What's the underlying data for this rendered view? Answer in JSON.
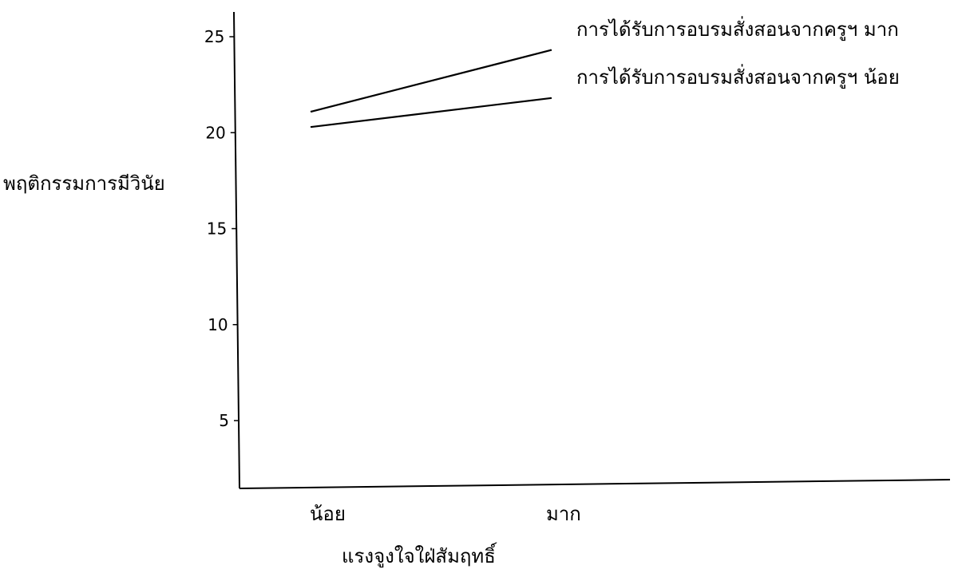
{
  "chart_data": {
    "type": "line",
    "categories": [
      "น้อย",
      "มาก"
    ],
    "series": [
      {
        "name": "การได้รับการอบรมสั่งสอนจากครูฯ มาก",
        "values": [
          21.1,
          24.3
        ]
      },
      {
        "name": "การได้รับการอบรมสั่งสอนจากครูฯ น้อย",
        "values": [
          20.3,
          21.8
        ]
      }
    ],
    "xlabel": "แรงจูงใจใฝ่สัมฤทธิ์",
    "ylabel": "พฤติกรรมการมีวินัย",
    "yticks": [
      5,
      10,
      15,
      20,
      25
    ],
    "ytick_labels": [
      "5",
      "10",
      "15",
      "20",
      "25"
    ],
    "ylim": [
      1.5,
      26
    ],
    "grid": false,
    "legend": "series labels placed at line ends (right of lines)"
  }
}
